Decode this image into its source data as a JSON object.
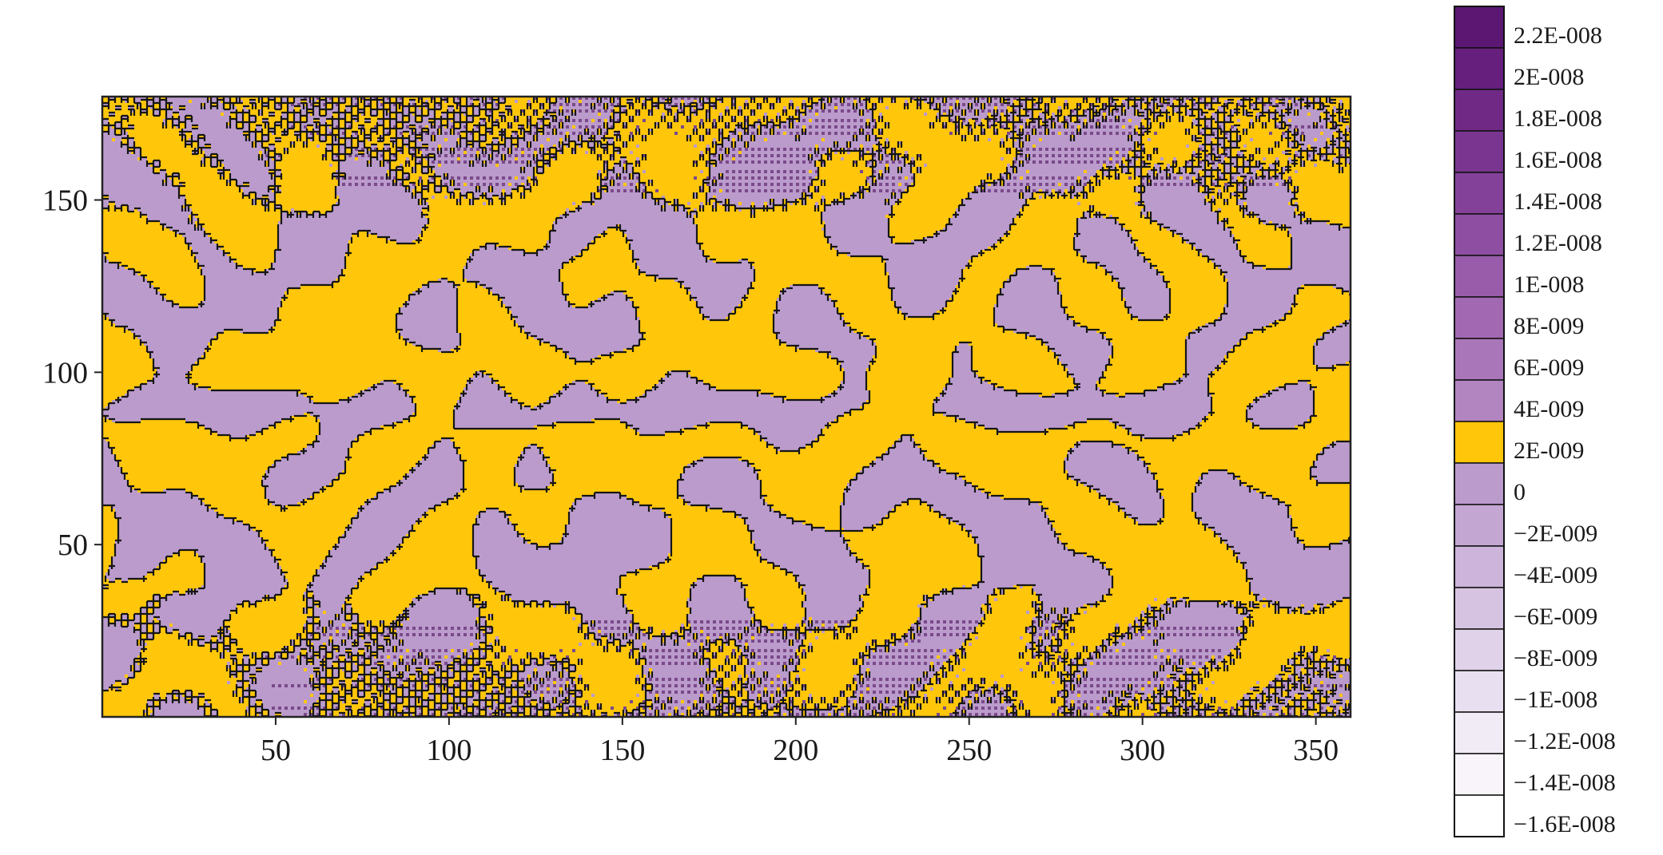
{
  "chart_data": {
    "type": "heatmap",
    "subtype": "filled-contour",
    "title": "",
    "xlabel": "",
    "ylabel": "",
    "xlim": [
      0,
      360
    ],
    "ylim": [
      0,
      180
    ],
    "x_ticks": [
      50,
      100,
      150,
      200,
      250,
      300,
      350
    ],
    "x_tick_labels": [
      "50",
      "100",
      "150",
      "200",
      "250",
      "300",
      "350"
    ],
    "y_ticks": [
      50,
      100,
      150
    ],
    "y_tick_labels": [
      "50",
      "100",
      "150"
    ],
    "grid": false,
    "colorbar": {
      "position": "right",
      "levels": [
        {
          "label": "2.2E-008",
          "value": 2.2e-08,
          "color": "#5c1773"
        },
        {
          "label": "2E-008",
          "value": 2e-08,
          "color": "#661f7d"
        },
        {
          "label": "1.8E-008",
          "value": 1.8e-08,
          "color": "#702a86"
        },
        {
          "label": "1.6E-008",
          "value": 1.6e-08,
          "color": "#7a3590"
        },
        {
          "label": "1.4E-008",
          "value": 1.4e-08,
          "color": "#844199"
        },
        {
          "label": "1.2E-008",
          "value": 1.2e-08,
          "color": "#8e4ea2"
        },
        {
          "label": "1E-008",
          "value": 1e-08,
          "color": "#985caa"
        },
        {
          "label": "8E-009",
          "value": 8e-09,
          "color": "#a268b2"
        },
        {
          "label": "6E-009",
          "value": 6e-09,
          "color": "#aa76ba"
        },
        {
          "label": "4E-009",
          "value": 4e-09,
          "color": "#b284c0"
        },
        {
          "label": "2E-009",
          "value": 2e-09,
          "color": "#ffc60a"
        },
        {
          "label": "0",
          "value": 0,
          "color": "#bb9bcc"
        },
        {
          "label": "−2E-009",
          "value": -2e-09,
          "color": "#c4a6d3"
        },
        {
          "label": "−4E-009",
          "value": -4e-09,
          "color": "#ccb4da"
        },
        {
          "label": "−6E-009",
          "value": -6e-09,
          "color": "#d6c3e2"
        },
        {
          "label": "−8E-009",
          "value": -8e-09,
          "color": "#dfd2e9"
        },
        {
          "label": "−1E-008",
          "value": -1e-08,
          "color": "#e8dff0"
        },
        {
          "label": "−1.2E-008",
          "value": -1.2e-08,
          "color": "#f1ebf6"
        },
        {
          "label": "−1.4E-008",
          "value": -1.4e-08,
          "color": "#f8f4fa"
        },
        {
          "label": "−1.6E-008",
          "value": -1.6e-08,
          "color": "#ffffff"
        }
      ]
    },
    "colors": {
      "positive_fill": "#ffc60a",
      "negative_fill": "#bb9bcc",
      "dense_negative": "#7a4a8a",
      "contour_line": "#151515"
    },
    "features": [
      {
        "type": "band",
        "description_value": "zero-level belt near y=90",
        "y_center": 90
      },
      {
        "type": "band",
        "y_center": 110
      },
      {
        "type": "band",
        "y_center": 70
      },
      {
        "type": "dense-oscillation",
        "y_range": [
          0,
          40
        ]
      },
      {
        "type": "dense-oscillation",
        "y_range": [
          145,
          180
        ]
      }
    ]
  }
}
